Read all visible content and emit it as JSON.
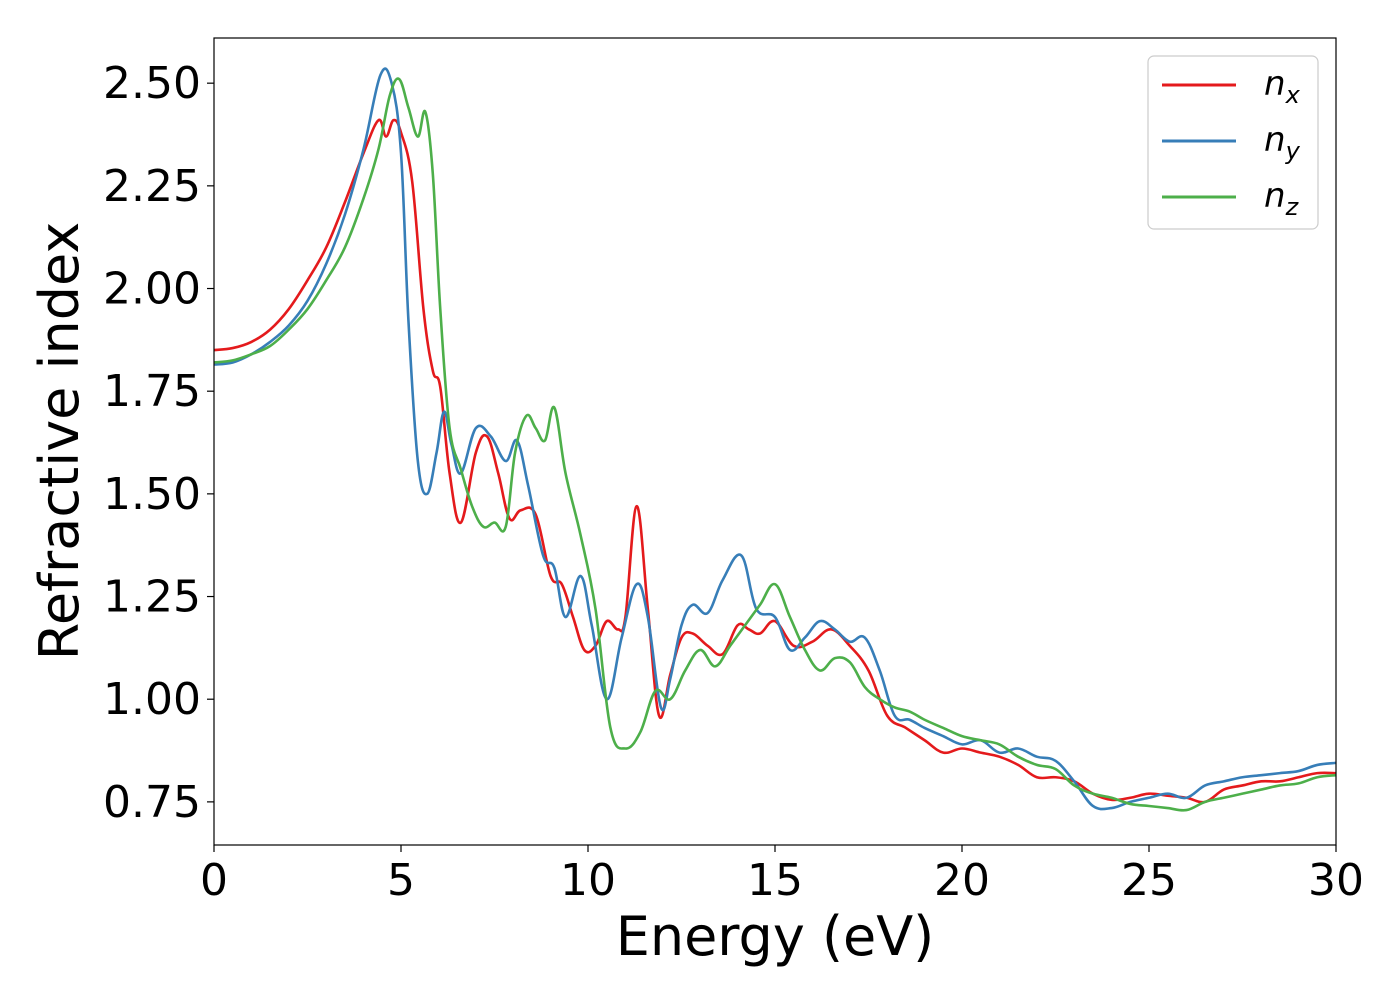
{
  "chart_data": {
    "type": "line",
    "xlabel": "Energy (eV)",
    "ylabel": "Refractive index",
    "xlim": [
      0,
      30
    ],
    "ylim": [
      0.645,
      2.61
    ],
    "xticks": [
      0,
      5,
      10,
      15,
      20,
      25,
      30
    ],
    "xtick_labels": [
      "0",
      "5",
      "10",
      "15",
      "20",
      "25",
      "30"
    ],
    "yticks": [
      0.75,
      1.0,
      1.25,
      1.5,
      1.75,
      2.0,
      2.25,
      2.5
    ],
    "ytick_labels": [
      "0.75",
      "1.00",
      "1.25",
      "1.50",
      "1.75",
      "2.00",
      "2.25",
      "2.50"
    ],
    "grid": false,
    "legend_position": "top-right",
    "series": [
      {
        "name": "n",
        "subscript": "x",
        "color": "#e41a1c",
        "x": [
          0,
          0.5,
          1,
          1.5,
          2,
          2.5,
          3,
          3.5,
          4,
          4.4,
          4.6,
          4.8,
          5,
          5.3,
          5.6,
          5.85,
          6.05,
          6.3,
          6.6,
          7,
          7.3,
          7.6,
          7.9,
          8.2,
          8.6,
          9,
          9.3,
          9.6,
          9.9,
          10.2,
          10.5,
          10.8,
          11,
          11.3,
          11.6,
          11.9,
          12.2,
          12.5,
          12.8,
          13.2,
          13.6,
          14,
          14.3,
          14.6,
          15,
          15.5,
          16,
          16.5,
          17,
          17.5,
          18,
          18.5,
          19,
          19.5,
          20,
          20.5,
          21,
          21.5,
          22,
          22.5,
          23,
          23.5,
          24,
          24.5,
          25,
          25.5,
          26,
          26.5,
          27,
          27.5,
          28,
          28.5,
          29,
          29.5,
          30
        ],
        "y": [
          1.85,
          1.855,
          1.87,
          1.9,
          1.95,
          2.02,
          2.1,
          2.21,
          2.33,
          2.41,
          2.37,
          2.41,
          2.38,
          2.26,
          1.95,
          1.8,
          1.76,
          1.55,
          1.43,
          1.6,
          1.64,
          1.55,
          1.44,
          1.46,
          1.45,
          1.3,
          1.28,
          1.2,
          1.12,
          1.13,
          1.19,
          1.17,
          1.2,
          1.47,
          1.22,
          0.96,
          1.06,
          1.15,
          1.16,
          1.13,
          1.11,
          1.18,
          1.17,
          1.16,
          1.19,
          1.13,
          1.14,
          1.17,
          1.13,
          1.07,
          0.96,
          0.93,
          0.9,
          0.87,
          0.88,
          0.87,
          0.86,
          0.84,
          0.81,
          0.81,
          0.8,
          0.77,
          0.755,
          0.76,
          0.77,
          0.765,
          0.76,
          0.75,
          0.78,
          0.79,
          0.8,
          0.8,
          0.81,
          0.82,
          0.82
        ]
      },
      {
        "name": "n",
        "subscript": "y",
        "color": "#377eb8",
        "x": [
          0,
          0.5,
          1,
          1.5,
          2,
          2.5,
          3,
          3.5,
          4,
          4.45,
          4.75,
          5,
          5.2,
          5.45,
          5.7,
          5.95,
          6.15,
          6.35,
          6.6,
          7,
          7.4,
          7.8,
          8.1,
          8.4,
          8.8,
          9.1,
          9.4,
          9.8,
          10.1,
          10.5,
          10.9,
          11.3,
          11.6,
          11.95,
          12.2,
          12.5,
          12.8,
          13.2,
          13.6,
          14.1,
          14.5,
          15,
          15.4,
          15.8,
          16.2,
          16.6,
          17,
          17.4,
          17.8,
          18.2,
          18.6,
          19,
          19.5,
          20,
          20.5,
          21,
          21.5,
          22,
          22.5,
          23,
          23.5,
          24,
          24.5,
          25,
          25.5,
          26,
          26.5,
          27,
          27.5,
          28,
          28.5,
          29,
          29.5,
          30
        ],
        "y": [
          1.815,
          1.82,
          1.84,
          1.87,
          1.91,
          1.97,
          2.06,
          2.18,
          2.34,
          2.52,
          2.5,
          2.33,
          1.92,
          1.58,
          1.5,
          1.6,
          1.7,
          1.62,
          1.55,
          1.66,
          1.64,
          1.58,
          1.63,
          1.52,
          1.35,
          1.32,
          1.2,
          1.3,
          1.18,
          1.0,
          1.15,
          1.28,
          1.2,
          0.98,
          1.05,
          1.18,
          1.23,
          1.21,
          1.29,
          1.35,
          1.22,
          1.2,
          1.12,
          1.15,
          1.19,
          1.17,
          1.14,
          1.15,
          1.07,
          0.96,
          0.95,
          0.93,
          0.91,
          0.89,
          0.9,
          0.87,
          0.88,
          0.86,
          0.85,
          0.8,
          0.74,
          0.735,
          0.75,
          0.76,
          0.77,
          0.76,
          0.79,
          0.8,
          0.81,
          0.815,
          0.82,
          0.825,
          0.84,
          0.845
        ]
      },
      {
        "name": "n",
        "subscript": "z",
        "color": "#4daf4a",
        "x": [
          0,
          0.5,
          1,
          1.5,
          2,
          2.5,
          3,
          3.5,
          4,
          4.4,
          4.7,
          4.95,
          5.2,
          5.45,
          5.65,
          5.85,
          6.05,
          6.3,
          6.6,
          6.9,
          7.2,
          7.5,
          7.8,
          8.05,
          8.35,
          8.6,
          8.85,
          9.1,
          9.4,
          9.8,
          10.2,
          10.6,
          11,
          11.4,
          11.8,
          12.2,
          12.6,
          13,
          13.4,
          13.8,
          14.2,
          14.6,
          15,
          15.4,
          15.8,
          16.2,
          16.6,
          17,
          17.4,
          17.8,
          18.2,
          18.6,
          19,
          19.5,
          20,
          20.5,
          21,
          21.5,
          22,
          22.5,
          23,
          23.5,
          24,
          24.5,
          25,
          25.5,
          26,
          26.5,
          27,
          27.5,
          28,
          28.5,
          29,
          29.5,
          30
        ],
        "y": [
          1.82,
          1.825,
          1.84,
          1.86,
          1.9,
          1.95,
          2.02,
          2.1,
          2.22,
          2.34,
          2.47,
          2.51,
          2.44,
          2.37,
          2.43,
          2.28,
          1.95,
          1.66,
          1.56,
          1.47,
          1.42,
          1.43,
          1.42,
          1.6,
          1.69,
          1.66,
          1.63,
          1.71,
          1.55,
          1.4,
          1.22,
          0.93,
          0.88,
          0.92,
          1.02,
          1.0,
          1.07,
          1.12,
          1.08,
          1.13,
          1.18,
          1.23,
          1.28,
          1.2,
          1.12,
          1.07,
          1.1,
          1.09,
          1.03,
          1.0,
          0.98,
          0.97,
          0.95,
          0.93,
          0.91,
          0.9,
          0.89,
          0.86,
          0.84,
          0.83,
          0.79,
          0.77,
          0.76,
          0.745,
          0.74,
          0.735,
          0.73,
          0.75,
          0.76,
          0.77,
          0.78,
          0.79,
          0.795,
          0.81,
          0.815
        ]
      }
    ]
  }
}
